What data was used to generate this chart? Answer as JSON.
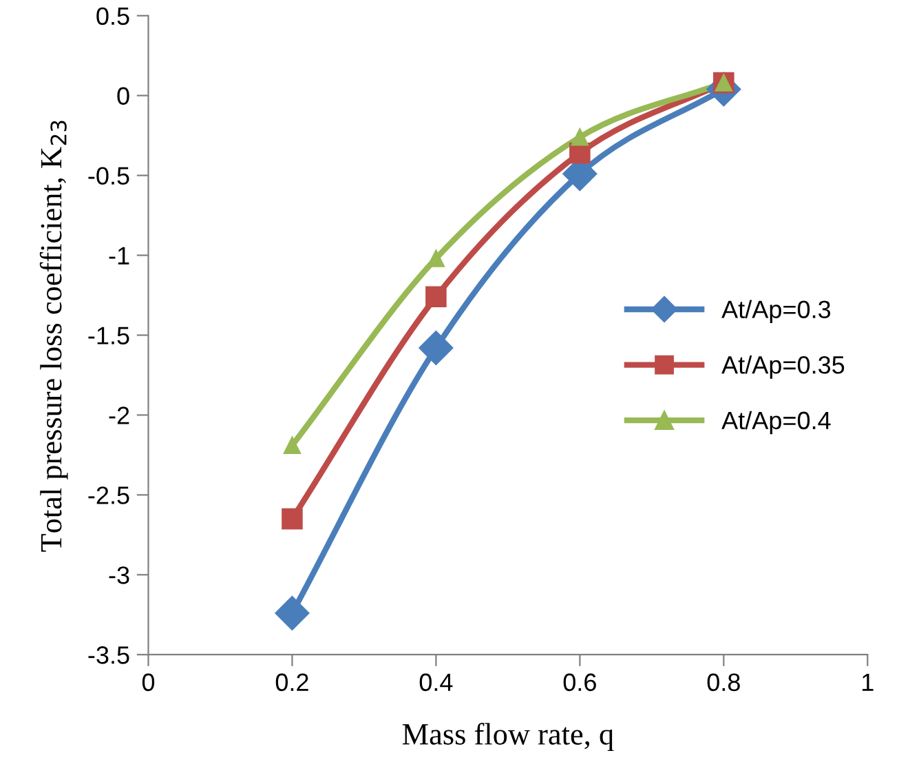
{
  "chart_data": {
    "type": "line",
    "xlabel": "Mass flow rate, q",
    "ylabel": "Total pressure loss coefficient, K$_{23}$",
    "x": [
      0.2,
      0.4,
      0.6,
      0.8
    ],
    "series": [
      {
        "name": "At/Ap=0.3",
        "color": "#4a7ebb",
        "marker": "diamond",
        "values": [
          -3.24,
          -1.58,
          -0.49,
          0.04
        ]
      },
      {
        "name": "At/Ap=0.35",
        "color": "#be4b48",
        "marker": "square",
        "values": [
          -2.65,
          -1.26,
          -0.36,
          0.08
        ]
      },
      {
        "name": "At/Ap=0.4",
        "color": "#98b954",
        "marker": "triangle",
        "values": [
          -2.19,
          -1.02,
          -0.26,
          0.08
        ]
      }
    ],
    "xlim": [
      0,
      1
    ],
    "xticks": [
      0,
      0.2,
      0.4,
      0.6,
      0.8,
      1
    ],
    "ylim": [
      -3.5,
      0.5
    ],
    "yticks": [
      -3.5,
      -3,
      -2.5,
      -2,
      -1.5,
      -1,
      -0.5,
      0,
      0.5
    ],
    "grid": false,
    "legend": "right",
    "line_style": "solid"
  }
}
